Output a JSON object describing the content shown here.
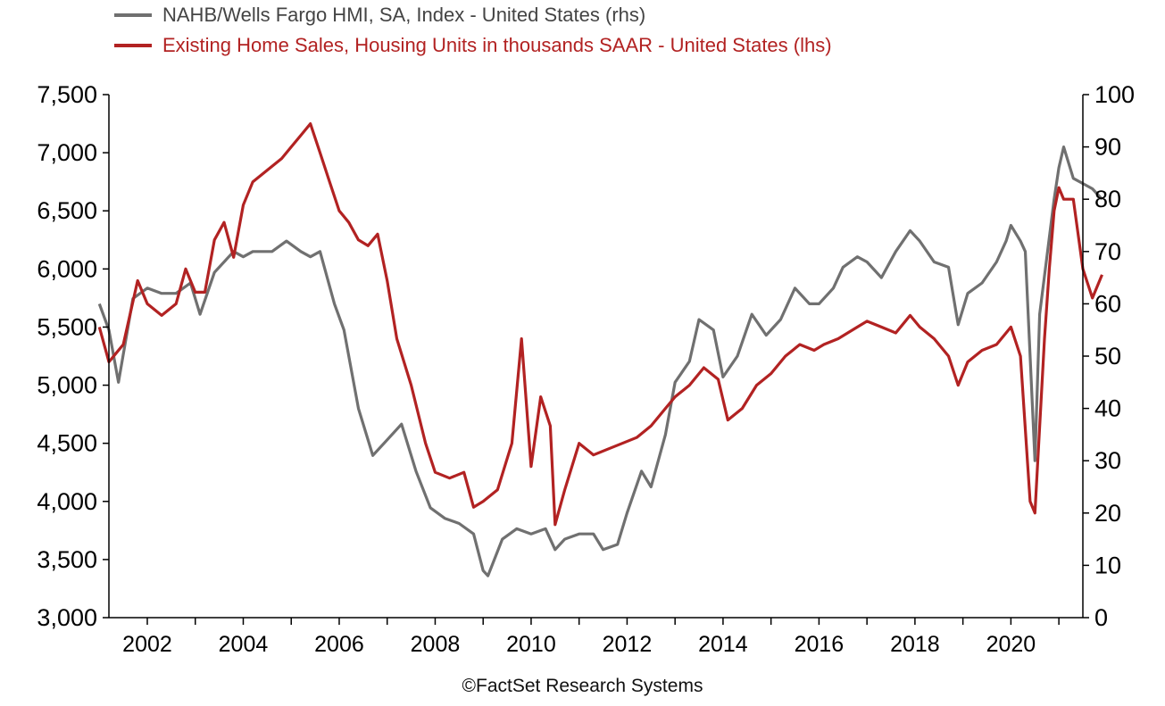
{
  "chart_data": {
    "type": "line",
    "x_ticks": [
      "2002",
      "2004",
      "2006",
      "2008",
      "2010",
      "2012",
      "2014",
      "2016",
      "2018",
      "2020"
    ],
    "y_left": {
      "ticks": [
        "3,000",
        "3,500",
        "4,000",
        "4,500",
        "5,000",
        "5,500",
        "6,000",
        "6,500",
        "7,000",
        "7,500"
      ],
      "lim": [
        3000,
        7500
      ]
    },
    "y_right": {
      "ticks": [
        "0",
        "10",
        "20",
        "30",
        "40",
        "50",
        "60",
        "70",
        "80",
        "90",
        "100"
      ],
      "lim": [
        0,
        100
      ]
    },
    "xlim": [
      2001.2,
      2021.5
    ],
    "grid": false,
    "legend_position": "top-left",
    "series": [
      {
        "name": "NAHB/Wells Fargo HMI, SA, Index - United States (rhs)",
        "axis": "right",
        "color": "#707070",
        "points": [
          [
            2001.0,
            60
          ],
          [
            2001.2,
            55
          ],
          [
            2001.4,
            45
          ],
          [
            2001.7,
            61
          ],
          [
            2002.0,
            63
          ],
          [
            2002.3,
            62
          ],
          [
            2002.6,
            62
          ],
          [
            2002.9,
            64
          ],
          [
            2003.1,
            58
          ],
          [
            2003.4,
            66
          ],
          [
            2003.8,
            70
          ],
          [
            2004.0,
            69
          ],
          [
            2004.2,
            70
          ],
          [
            2004.6,
            70
          ],
          [
            2004.9,
            72
          ],
          [
            2005.2,
            70
          ],
          [
            2005.4,
            69
          ],
          [
            2005.6,
            70
          ],
          [
            2005.9,
            60
          ],
          [
            2006.1,
            55
          ],
          [
            2006.4,
            40
          ],
          [
            2006.7,
            31
          ],
          [
            2007.0,
            34
          ],
          [
            2007.3,
            37
          ],
          [
            2007.6,
            28
          ],
          [
            2007.9,
            21
          ],
          [
            2008.2,
            19
          ],
          [
            2008.5,
            18
          ],
          [
            2008.8,
            16
          ],
          [
            2009.0,
            9
          ],
          [
            2009.1,
            8
          ],
          [
            2009.4,
            15
          ],
          [
            2009.7,
            17
          ],
          [
            2010.0,
            16
          ],
          [
            2010.3,
            17
          ],
          [
            2010.5,
            13
          ],
          [
            2010.7,
            15
          ],
          [
            2011.0,
            16
          ],
          [
            2011.3,
            16
          ],
          [
            2011.5,
            13
          ],
          [
            2011.8,
            14
          ],
          [
            2012.0,
            20
          ],
          [
            2012.3,
            28
          ],
          [
            2012.5,
            25
          ],
          [
            2012.8,
            35
          ],
          [
            2013.0,
            45
          ],
          [
            2013.3,
            49
          ],
          [
            2013.5,
            57
          ],
          [
            2013.8,
            55
          ],
          [
            2014.0,
            46
          ],
          [
            2014.3,
            50
          ],
          [
            2014.6,
            58
          ],
          [
            2014.9,
            54
          ],
          [
            2015.2,
            57
          ],
          [
            2015.5,
            63
          ],
          [
            2015.8,
            60
          ],
          [
            2016.0,
            60
          ],
          [
            2016.3,
            63
          ],
          [
            2016.5,
            67
          ],
          [
            2016.8,
            69
          ],
          [
            2017.0,
            68
          ],
          [
            2017.3,
            65
          ],
          [
            2017.6,
            70
          ],
          [
            2017.9,
            74
          ],
          [
            2018.1,
            72
          ],
          [
            2018.4,
            68
          ],
          [
            2018.7,
            67
          ],
          [
            2018.9,
            56
          ],
          [
            2019.1,
            62
          ],
          [
            2019.4,
            64
          ],
          [
            2019.7,
            68
          ],
          [
            2019.9,
            72
          ],
          [
            2020.0,
            75
          ],
          [
            2020.2,
            72
          ],
          [
            2020.3,
            70
          ],
          [
            2020.5,
            30
          ],
          [
            2020.6,
            58
          ],
          [
            2020.9,
            80
          ],
          [
            2021.0,
            86
          ],
          [
            2021.1,
            90
          ],
          [
            2021.3,
            84
          ],
          [
            2021.5,
            83
          ],
          [
            2021.7,
            82
          ],
          [
            2021.9,
            80
          ]
        ]
      },
      {
        "name": "Existing Home Sales, Housing Units in thousands SAAR - United States (lhs)",
        "axis": "left",
        "color": "#b22222",
        "points": [
          [
            2001.0,
            5500
          ],
          [
            2001.2,
            5200
          ],
          [
            2001.5,
            5350
          ],
          [
            2001.8,
            5900
          ],
          [
            2002.0,
            5700
          ],
          [
            2002.3,
            5600
          ],
          [
            2002.6,
            5700
          ],
          [
            2002.8,
            6000
          ],
          [
            2003.0,
            5800
          ],
          [
            2003.2,
            5800
          ],
          [
            2003.4,
            6250
          ],
          [
            2003.6,
            6400
          ],
          [
            2003.8,
            6100
          ],
          [
            2004.0,
            6550
          ],
          [
            2004.2,
            6750
          ],
          [
            2004.5,
            6850
          ],
          [
            2004.8,
            6950
          ],
          [
            2005.0,
            7050
          ],
          [
            2005.2,
            7150
          ],
          [
            2005.4,
            7250
          ],
          [
            2005.6,
            7000
          ],
          [
            2005.8,
            6750
          ],
          [
            2006.0,
            6500
          ],
          [
            2006.2,
            6400
          ],
          [
            2006.4,
            6250
          ],
          [
            2006.6,
            6200
          ],
          [
            2006.8,
            6300
          ],
          [
            2007.0,
            5900
          ],
          [
            2007.2,
            5400
          ],
          [
            2007.5,
            5000
          ],
          [
            2007.8,
            4500
          ],
          [
            2008.0,
            4250
          ],
          [
            2008.3,
            4200
          ],
          [
            2008.6,
            4250
          ],
          [
            2008.8,
            3950
          ],
          [
            2009.0,
            4000
          ],
          [
            2009.3,
            4100
          ],
          [
            2009.6,
            4500
          ],
          [
            2009.8,
            5400
          ],
          [
            2010.0,
            4300
          ],
          [
            2010.2,
            4900
          ],
          [
            2010.4,
            4650
          ],
          [
            2010.5,
            3800
          ],
          [
            2010.7,
            4100
          ],
          [
            2011.0,
            4500
          ],
          [
            2011.3,
            4400
          ],
          [
            2011.6,
            4450
          ],
          [
            2011.9,
            4500
          ],
          [
            2012.2,
            4550
          ],
          [
            2012.5,
            4650
          ],
          [
            2012.8,
            4800
          ],
          [
            2013.0,
            4900
          ],
          [
            2013.3,
            5000
          ],
          [
            2013.6,
            5150
          ],
          [
            2013.9,
            5050
          ],
          [
            2014.1,
            4700
          ],
          [
            2014.4,
            4800
          ],
          [
            2014.7,
            5000
          ],
          [
            2015.0,
            5100
          ],
          [
            2015.3,
            5250
          ],
          [
            2015.6,
            5350
          ],
          [
            2015.9,
            5300
          ],
          [
            2016.1,
            5350
          ],
          [
            2016.4,
            5400
          ],
          [
            2016.8,
            5500
          ],
          [
            2017.0,
            5550
          ],
          [
            2017.3,
            5500
          ],
          [
            2017.6,
            5450
          ],
          [
            2017.9,
            5600
          ],
          [
            2018.1,
            5500
          ],
          [
            2018.4,
            5400
          ],
          [
            2018.7,
            5250
          ],
          [
            2018.9,
            5000
          ],
          [
            2019.1,
            5200
          ],
          [
            2019.4,
            5300
          ],
          [
            2019.7,
            5350
          ],
          [
            2019.9,
            5450
          ],
          [
            2020.0,
            5500
          ],
          [
            2020.2,
            5250
          ],
          [
            2020.4,
            4000
          ],
          [
            2020.5,
            3900
          ],
          [
            2020.7,
            5400
          ],
          [
            2020.8,
            6000
          ],
          [
            2020.9,
            6500
          ],
          [
            2021.0,
            6700
          ],
          [
            2021.1,
            6600
          ],
          [
            2021.3,
            6600
          ],
          [
            2021.5,
            6000
          ],
          [
            2021.7,
            5750
          ],
          [
            2021.9,
            5950
          ]
        ]
      }
    ],
    "source": "©FactSet Research Systems"
  }
}
